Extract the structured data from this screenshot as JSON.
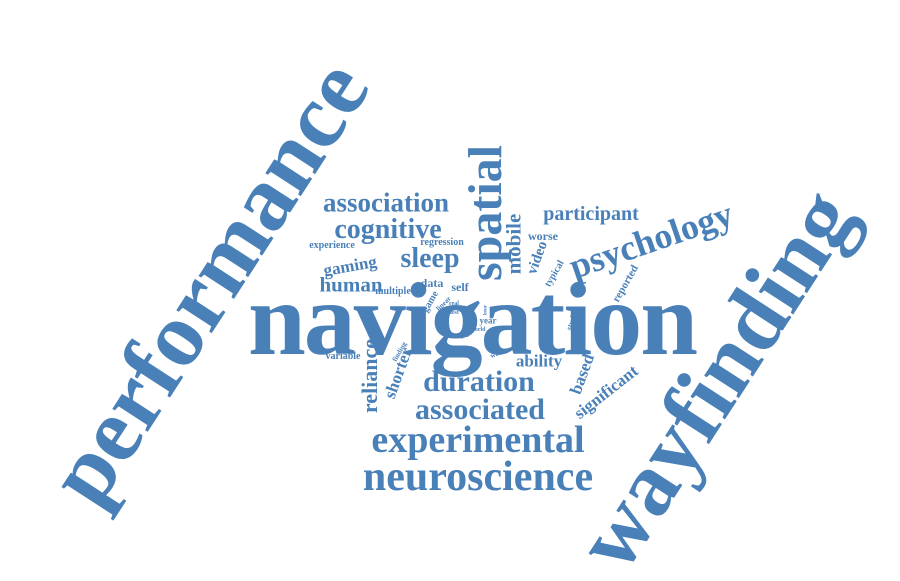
{
  "word_color": "#4a80b8",
  "background": "#ffffff",
  "words": {
    "navigation": "navigation",
    "performance": "performance",
    "wayfinding": "wayfinding",
    "neuroscience": "neuroscience",
    "experimental": "experimental",
    "associated": "associated",
    "duration": "duration",
    "spatial": "spatial",
    "psychology": "psychology",
    "association": "association",
    "cognitive": "cognitive",
    "sleep": "sleep",
    "participant": "participant",
    "mobile": "mobile",
    "human": "human",
    "gaming": "gaming",
    "reliance": "reliance",
    "shorter": "shorter",
    "ability": "ability",
    "based": "based",
    "significant": "significant",
    "video": "video",
    "reported": "reported",
    "worse": "worse",
    "typical": "typical",
    "experience": "experience",
    "regression": "regression",
    "data": "data",
    "self": "self",
    "multiple": "multiple",
    "game": "game",
    "variable": "variable",
    "virtual": "virtual",
    "finding": "finding",
    "linear": "linear",
    "quest": "quest",
    "real": "real",
    "year": "year",
    "studies": "studies",
    "woman": "woman",
    "world": "world",
    "night": "night",
    "young": "young",
    "hour": "hour"
  }
}
